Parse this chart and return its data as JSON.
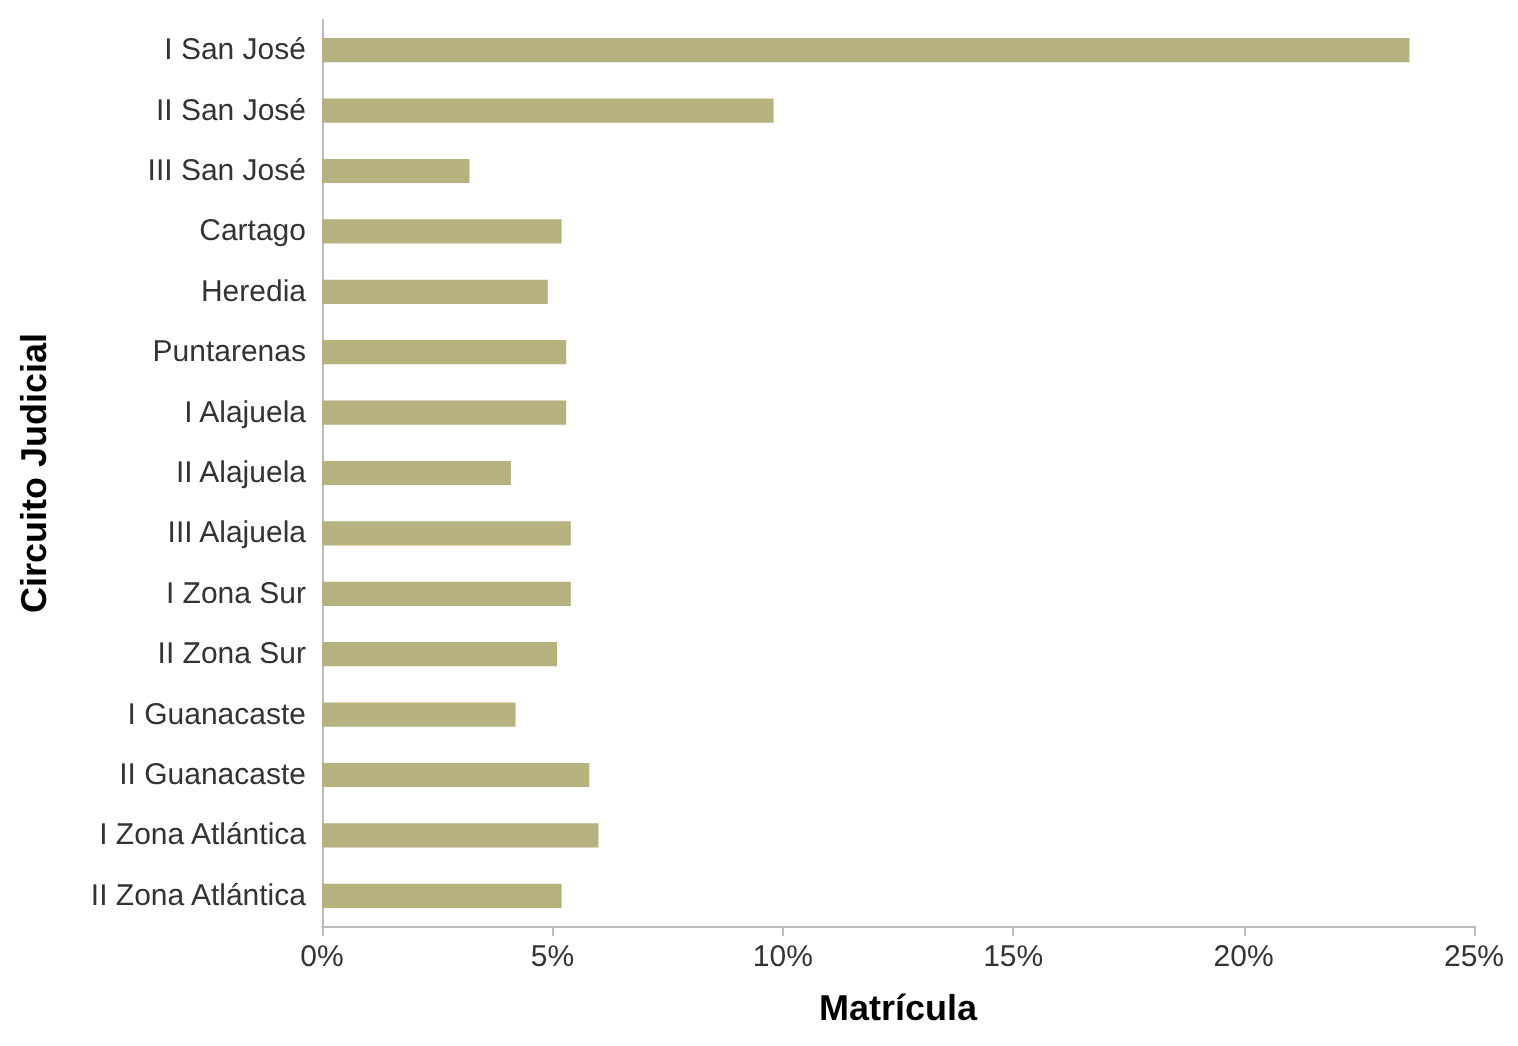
{
  "chart_data": {
    "type": "bar",
    "orientation": "horizontal",
    "xlabel": "Matrícula",
    "ylabel": "Circuito Judicial",
    "categories": [
      "I San José",
      "II San José",
      "III San José",
      "Cartago",
      "Heredia",
      "Puntarenas",
      "I Alajuela",
      "II Alajuela",
      "III Alajuela",
      "I Zona Sur",
      "II Zona Sur",
      "I Guanacaste",
      "II Guanacaste",
      "I Zona Atlántica",
      "II Zona Atlántica"
    ],
    "values": [
      23.6,
      9.8,
      3.2,
      5.2,
      4.9,
      5.3,
      5.3,
      4.1,
      5.4,
      5.4,
      5.1,
      4.2,
      5.8,
      6.0,
      5.2
    ],
    "color": "#b5b27f",
    "xlim": [
      0,
      25
    ],
    "xticks": [
      {
        "value": 0,
        "label": "0%"
      },
      {
        "value": 5,
        "label": "5%"
      },
      {
        "value": 10,
        "label": "10%"
      },
      {
        "value": 15,
        "label": "15%"
      },
      {
        "value": 20,
        "label": "20%"
      },
      {
        "value": 25,
        "label": "25%"
      }
    ],
    "grid": false
  }
}
